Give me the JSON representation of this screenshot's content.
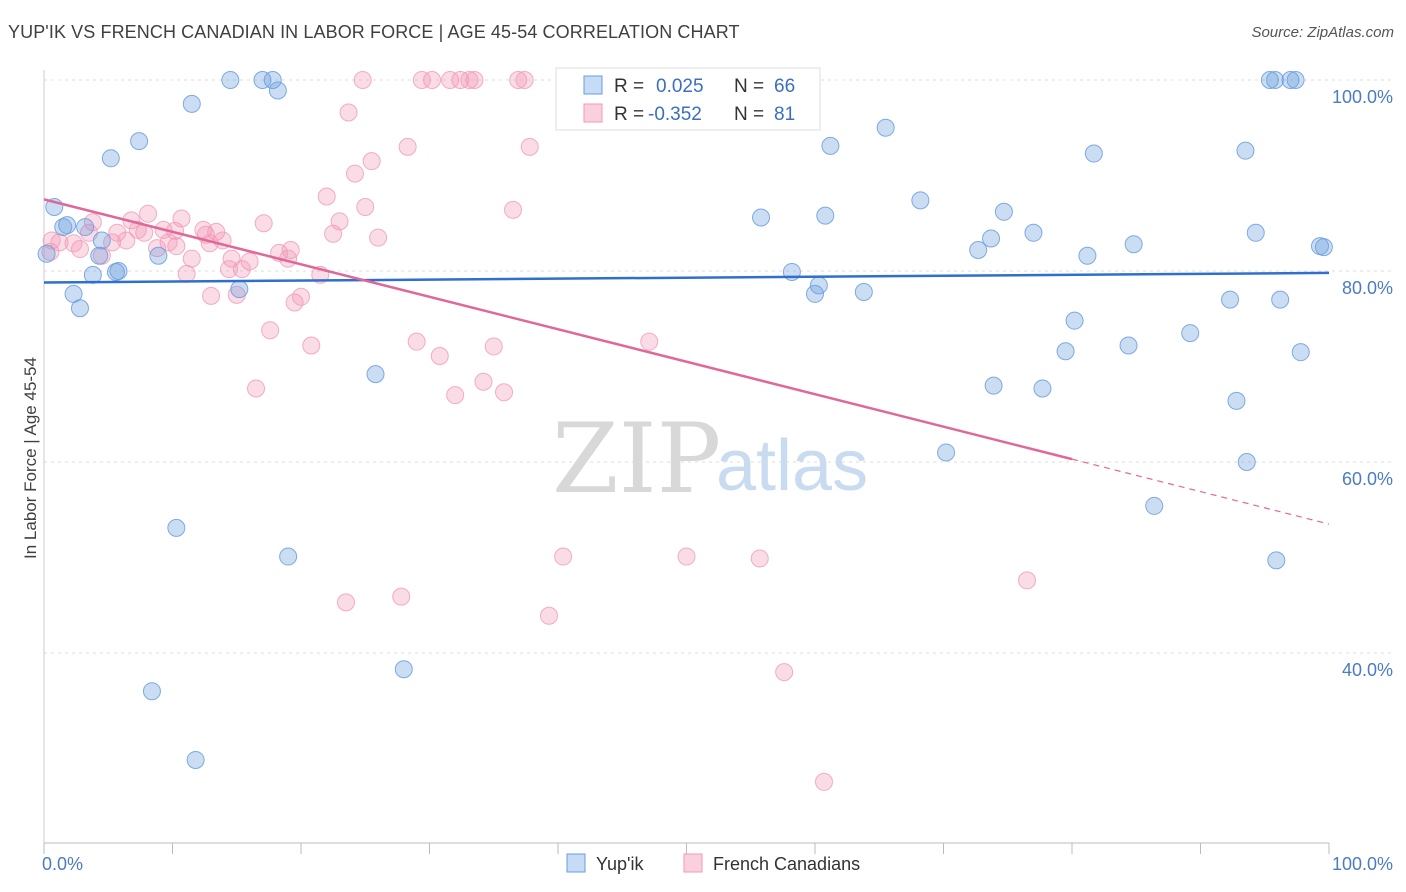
{
  "header": {
    "title": "YUP'IK VS FRENCH CANADIAN IN LABOR FORCE | AGE 45-54 CORRELATION CHART",
    "source": "Source: ZipAtlas.com"
  },
  "watermark": {
    "zip": "ZIP",
    "atlas": "atlas"
  },
  "legend": {
    "r_label": "R =",
    "n_label": "N =",
    "rows": [
      {
        "r": "0.025",
        "n": "66"
      },
      {
        "r": "-0.352",
        "n": "81"
      }
    ]
  },
  "bottom_legend": [
    "Yup'ik",
    "French Canadians"
  ],
  "chart_data": {
    "type": "scatter",
    "title": "YUP'IK VS FRENCH CANADIAN IN LABOR FORCE | AGE 45-54 CORRELATION CHART",
    "xlabel": "",
    "ylabel": "In Labor Force | Age 45-54",
    "xlim": [
      0,
      100
    ],
    "ylim": [
      20,
      101
    ],
    "x_tick_labels": [
      "0.0%",
      "100.0%"
    ],
    "y_ticks": [
      40,
      60,
      80,
      100
    ],
    "y_tick_labels": [
      "40.0%",
      "60.0%",
      "80.0%",
      "100.0%"
    ],
    "grid": "horizontal dashed",
    "legend_position": "top-center",
    "colors": {
      "yupik": "#6a9ede",
      "french": "#f19ab8",
      "yupik_line": "#2f6fce",
      "french_line": "#e0679a"
    },
    "series": [
      {
        "name": "Yup'ik",
        "r": 0.025,
        "n": 66,
        "trend": {
          "x": [
            0,
            100
          ],
          "y": [
            78.8,
            79.8
          ]
        },
        "points": [
          [
            0.2,
            81.8
          ],
          [
            0.8,
            86.7
          ],
          [
            1.5,
            84.6
          ],
          [
            1.8,
            84.8
          ],
          [
            2.3,
            77.6
          ],
          [
            2.8,
            76.1
          ],
          [
            3.2,
            84.6
          ],
          [
            3.8,
            79.6
          ],
          [
            4.3,
            81.6
          ],
          [
            4.5,
            83.2
          ],
          [
            5.2,
            91.8
          ],
          [
            5.6,
            79.9
          ],
          [
            5.8,
            80
          ],
          [
            7.4,
            93.6
          ],
          [
            8.4,
            36
          ],
          [
            8.9,
            81.6
          ],
          [
            10.3,
            53.1
          ],
          [
            11.5,
            97.5
          ],
          [
            11.8,
            28.8
          ],
          [
            14.5,
            100
          ],
          [
            15.2,
            78.1
          ],
          [
            17,
            100
          ],
          [
            17.8,
            100
          ],
          [
            18.2,
            98.9
          ],
          [
            19,
            50.1
          ],
          [
            25.8,
            69.2
          ],
          [
            28,
            38.3
          ],
          [
            49.5,
            100
          ],
          [
            55.8,
            85.6
          ],
          [
            58.2,
            79.9
          ],
          [
            60,
            77.6
          ],
          [
            60.3,
            78.5
          ],
          [
            60.8,
            85.8
          ],
          [
            61.2,
            93.1
          ],
          [
            63.8,
            77.8
          ],
          [
            65.5,
            95
          ],
          [
            68.2,
            87.4
          ],
          [
            70.2,
            61
          ],
          [
            72.7,
            82.2
          ],
          [
            73.7,
            83.4
          ],
          [
            73.9,
            68
          ],
          [
            74.7,
            86.2
          ],
          [
            77,
            84
          ],
          [
            77.7,
            67.7
          ],
          [
            79.5,
            71.6
          ],
          [
            80.2,
            74.8
          ],
          [
            81.2,
            81.6
          ],
          [
            81.7,
            92.3
          ],
          [
            84.4,
            72.2
          ],
          [
            84.8,
            82.8
          ],
          [
            86.4,
            55.4
          ],
          [
            89.2,
            73.5
          ],
          [
            92.3,
            77
          ],
          [
            92.8,
            66.4
          ],
          [
            93.5,
            92.6
          ],
          [
            93.6,
            60
          ],
          [
            94.3,
            84
          ],
          [
            95.4,
            100
          ],
          [
            95.8,
            100
          ],
          [
            95.9,
            49.7
          ],
          [
            96.2,
            77
          ],
          [
            97,
            100
          ],
          [
            97.4,
            100
          ],
          [
            97.8,
            71.5
          ],
          [
            99.3,
            82.6
          ],
          [
            99.6,
            82.5
          ]
        ]
      },
      {
        "name": "French Canadians",
        "r": -0.352,
        "n": 81,
        "trend": {
          "x": [
            0,
            80
          ],
          "y": [
            87.5,
            60.3
          ]
        },
        "trend_dashed": {
          "x": [
            80,
            100
          ],
          "y": [
            60.3,
            53.5
          ]
        },
        "points": [
          [
            0.5,
            82
          ],
          [
            0.6,
            83.2
          ],
          [
            1.2,
            83
          ],
          [
            2.3,
            82.9
          ],
          [
            2.8,
            82.3
          ],
          [
            3.5,
            84
          ],
          [
            3.8,
            85.1
          ],
          [
            4.5,
            81.6
          ],
          [
            5.3,
            83
          ],
          [
            5.7,
            84
          ],
          [
            6.4,
            83.2
          ],
          [
            6.8,
            85.3
          ],
          [
            7.3,
            84.3
          ],
          [
            7.8,
            84
          ],
          [
            8.1,
            86
          ],
          [
            8.8,
            82.4
          ],
          [
            9.3,
            84.3
          ],
          [
            9.7,
            83
          ],
          [
            10.2,
            84.2
          ],
          [
            10.3,
            82.6
          ],
          [
            10.7,
            85.5
          ],
          [
            11.1,
            79.7
          ],
          [
            11.5,
            81.3
          ],
          [
            12.4,
            84.3
          ],
          [
            12.6,
            83.8
          ],
          [
            12.9,
            82.9
          ],
          [
            13,
            77.4
          ],
          [
            13.4,
            84.1
          ],
          [
            13.9,
            83.2
          ],
          [
            14.4,
            80.2
          ],
          [
            14.6,
            81.3
          ],
          [
            15,
            77.5
          ],
          [
            15.4,
            80.2
          ],
          [
            16,
            81
          ],
          [
            16.5,
            67.7
          ],
          [
            17.1,
            85
          ],
          [
            17.6,
            73.8
          ],
          [
            18.3,
            81.9
          ],
          [
            19,
            81.3
          ],
          [
            19.2,
            82.2
          ],
          [
            19.5,
            76.7
          ],
          [
            20,
            77.3
          ],
          [
            20.8,
            72.2
          ],
          [
            21.5,
            79.6
          ],
          [
            22,
            87.8
          ],
          [
            22.5,
            83.9
          ],
          [
            23,
            85.2
          ],
          [
            23.5,
            45.3
          ],
          [
            23.7,
            96.6
          ],
          [
            24.2,
            90.2
          ],
          [
            24.8,
            100
          ],
          [
            25,
            86.7
          ],
          [
            25.5,
            91.5
          ],
          [
            26,
            83.5
          ],
          [
            27.8,
            45.9
          ],
          [
            28.3,
            93
          ],
          [
            29,
            72.6
          ],
          [
            29.4,
            100
          ],
          [
            30.2,
            100
          ],
          [
            30.8,
            71.1
          ],
          [
            31.6,
            100
          ],
          [
            32,
            67
          ],
          [
            32.4,
            100
          ],
          [
            33.1,
            100
          ],
          [
            33.5,
            100
          ],
          [
            34.2,
            68.4
          ],
          [
            35,
            72.1
          ],
          [
            35.8,
            67.3
          ],
          [
            36.5,
            86.4
          ],
          [
            36.9,
            100
          ],
          [
            37.4,
            100
          ],
          [
            37.8,
            93
          ],
          [
            39.3,
            43.9
          ],
          [
            40.4,
            50.1
          ],
          [
            47.1,
            72.6
          ],
          [
            50,
            50.1
          ],
          [
            55.7,
            49.9
          ],
          [
            56.5,
            100
          ],
          [
            57.6,
            38
          ],
          [
            60.7,
            26.5
          ],
          [
            76.5,
            47.6
          ]
        ]
      }
    ]
  }
}
